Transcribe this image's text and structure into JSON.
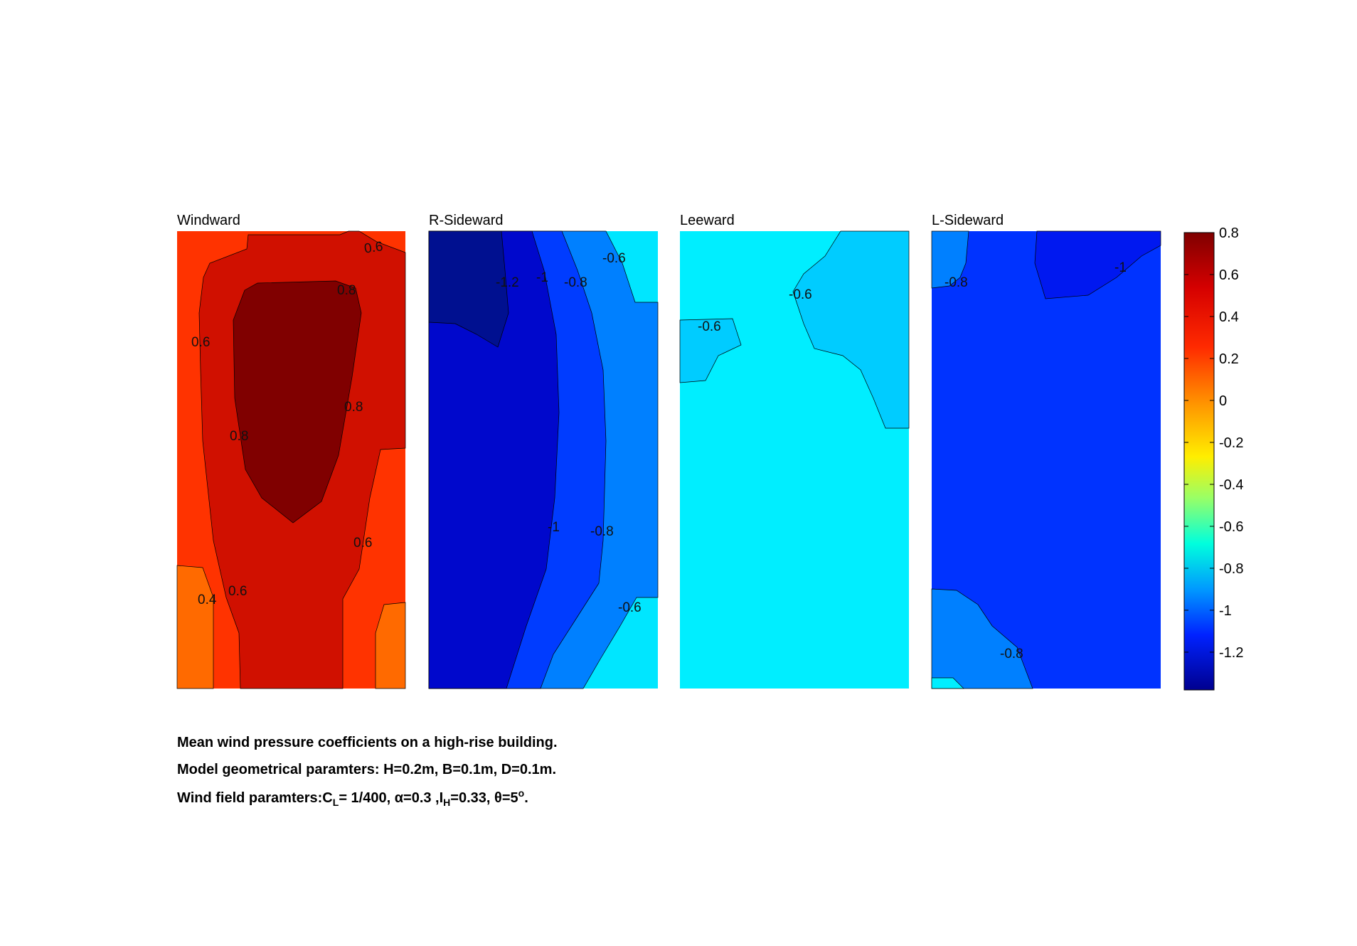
{
  "chart_data": {
    "type": "heatmap",
    "description_type": "filled contour panels",
    "colormap": "jet",
    "panels": [
      {
        "title": "Windward",
        "background": "#ff3300",
        "regions": [
          {
            "level": 0.4,
            "color": "#ff6a00"
          },
          {
            "level": 0.6,
            "color": "#d01000"
          },
          {
            "level": 0.8,
            "color": "#800000"
          }
        ],
        "contour_labels": [
          "0.6",
          "0.8",
          "0.6",
          "0.8",
          "0.8",
          "0.6",
          "0.4",
          "0.6"
        ]
      },
      {
        "title": "R-Sideward",
        "background": "#00e6ff",
        "regions": [
          {
            "level": -0.8,
            "color": "#0080ff"
          },
          {
            "level": -1.0,
            "color": "#003cff"
          },
          {
            "level": -1.2,
            "color": "#0008cc"
          },
          {
            "level": -1.4,
            "color": "#001090"
          }
        ],
        "contour_labels": [
          "-0.6",
          "-1.2",
          "-1",
          "-0.8",
          "-1",
          "-0.8",
          "-0.6"
        ]
      },
      {
        "title": "Leeward",
        "background": "#00eeff",
        "regions": [
          {
            "level": -0.6,
            "color": "#00ccff"
          }
        ],
        "contour_labels": [
          "-0.6",
          "-0.6"
        ]
      },
      {
        "title": "L-Sideward",
        "background": "#0033ff",
        "regions": [
          {
            "level": -1.0,
            "color": "#0018f0"
          },
          {
            "level": -0.8,
            "color": "#0080ff"
          },
          {
            "level": -0.6,
            "color": "#00eeff"
          }
        ],
        "contour_labels": [
          "-0.8",
          "-1",
          "-0.8"
        ]
      }
    ],
    "colorbar": {
      "ticks": [
        "0.8",
        "0.6",
        "0.4",
        "0.2",
        "0",
        "-0.2",
        "-0.4",
        "-0.6",
        "-0.8",
        "-1",
        "-1.2"
      ],
      "tick_values": [
        0.8,
        0.6,
        0.4,
        0.2,
        0,
        -0.2,
        -0.4,
        -0.6,
        -0.8,
        -1,
        -1.2
      ],
      "range": [
        -1.38,
        0.8
      ]
    }
  },
  "caption": {
    "line1": "Mean wind pressure coefficients on a high-rise building.",
    "line2": "Model geometrical paramters: H=0.2m, B=0.1m, D=0.1m.",
    "line3_parts": [
      "Wind field paramters:C",
      "L",
      "= 1/400, ",
      "α=0.3",
      " ,I",
      "H",
      "=0.33, ",
      "θ=5",
      "o",
      "."
    ]
  }
}
